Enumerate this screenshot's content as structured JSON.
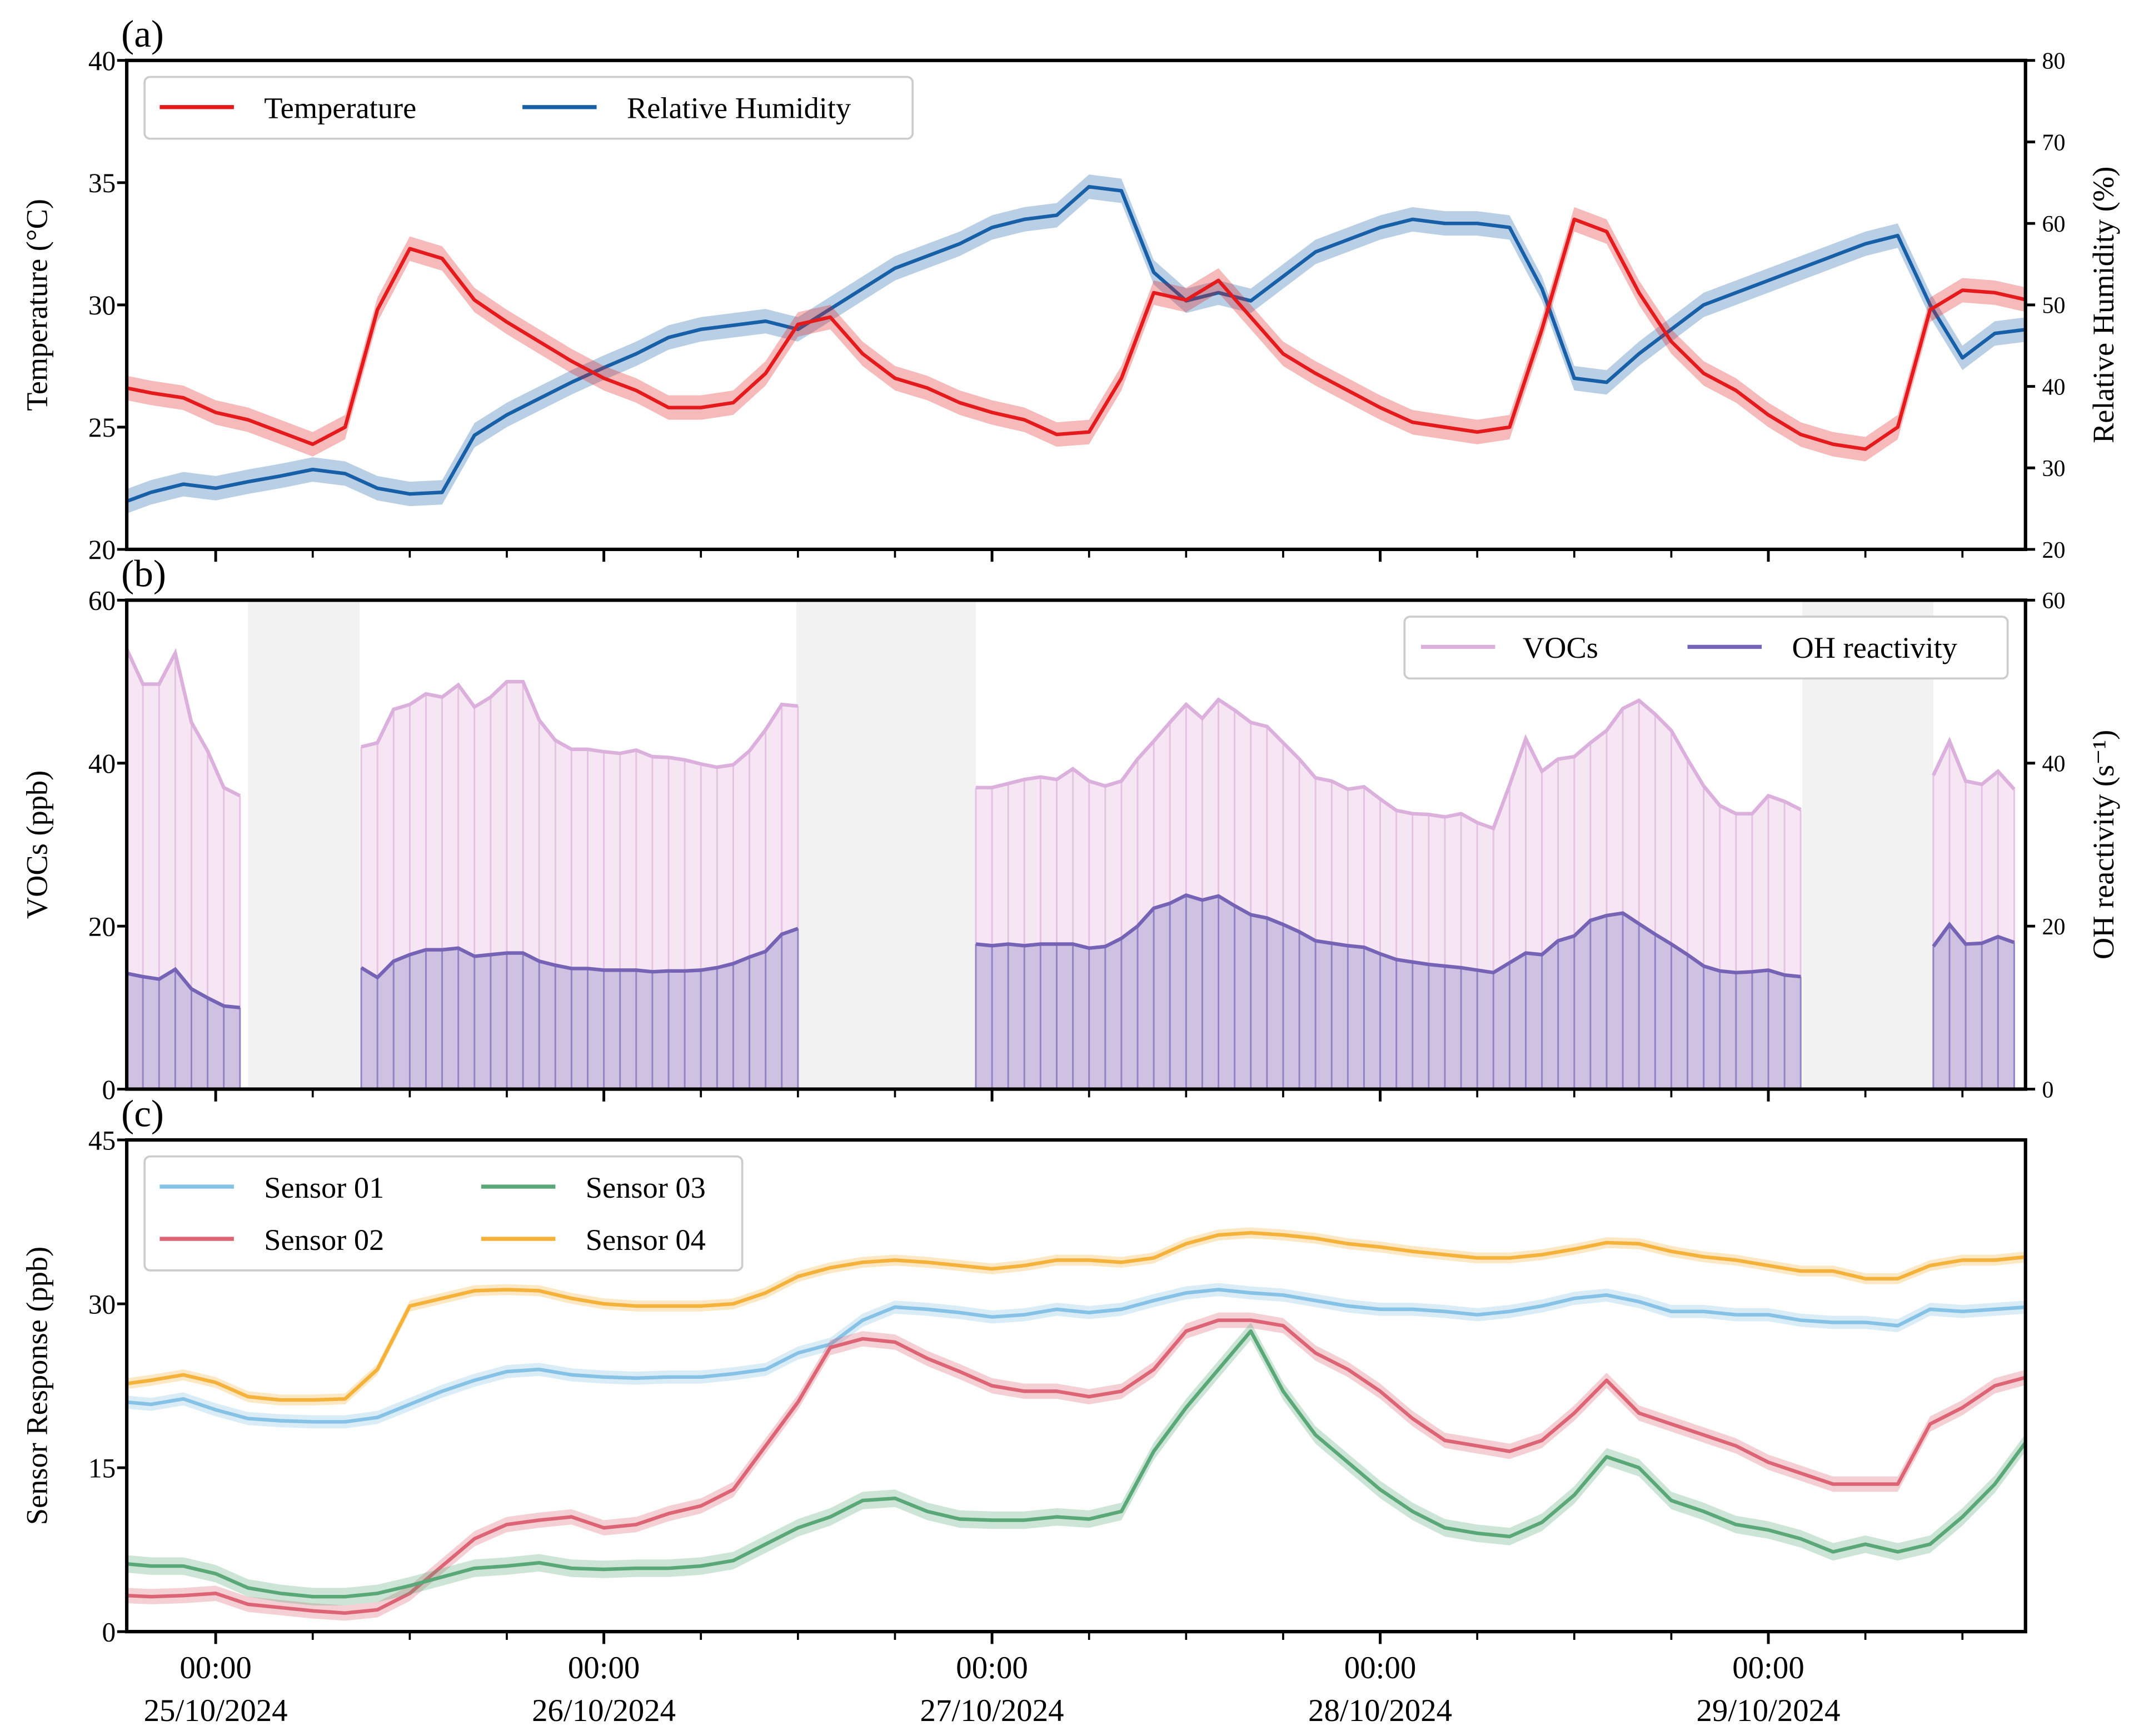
{
  "chart_data": [
    {
      "panel": "(a)",
      "type": "line",
      "ylabel": "Temperature (°C)",
      "ylabel2": "Relative Humidity (%)",
      "ylim": [
        20,
        40
      ],
      "ylim2": [
        20,
        80
      ],
      "yticks": [
        "20",
        "25",
        "30",
        "35",
        "40"
      ],
      "yticks2": [
        "20",
        "30",
        "40",
        "50",
        "60",
        "70",
        "80"
      ],
      "legend_position": "top-left",
      "series": [
        {
          "name": "Temperature",
          "axis": "left",
          "color": "#e41a1c",
          "band": 0.5,
          "values": [
            26.6,
            26.4,
            26.2,
            25.6,
            25.3,
            24.8,
            24.3,
            25.0,
            29.8,
            32.3,
            31.9,
            30.2,
            29.3,
            28.5,
            27.7,
            27.0,
            26.5,
            25.8,
            25.8,
            26.0,
            27.2,
            29.2,
            29.5,
            28.0,
            27.0,
            26.6,
            26.0,
            25.6,
            25.3,
            24.7,
            24.8,
            27.0,
            30.5,
            30.2,
            31.0,
            29.5,
            28.0,
            27.2,
            26.5,
            25.8,
            25.2,
            25.0,
            24.8,
            25.0,
            29.0,
            33.5,
            33.0,
            30.5,
            28.5,
            27.2,
            26.5,
            25.5,
            24.7,
            24.3,
            24.1,
            25.0,
            29.8,
            30.6,
            30.5,
            30.2
          ]
        },
        {
          "name": "Relative Humidity",
          "axis": "right",
          "color": "#1760a8",
          "band": 1.5,
          "values": [
            25.9,
            27,
            28,
            27.5,
            28.3,
            29,
            29.8,
            29.3,
            27.5,
            26.8,
            27,
            34,
            36.5,
            38.5,
            40.5,
            42.3,
            44,
            46,
            47,
            47.5,
            48,
            47,
            49.5,
            52,
            54.5,
            56,
            57.5,
            59.5,
            60.5,
            61,
            64.5,
            64,
            54,
            50.5,
            51.5,
            50.5,
            53.5,
            56.5,
            58,
            59.5,
            60.5,
            60,
            60,
            59.5,
            52,
            41,
            40.5,
            44,
            47,
            50,
            51.5,
            53,
            54.5,
            56,
            57.5,
            58.5,
            50,
            43.5,
            46.5,
            47
          ]
        }
      ]
    },
    {
      "panel": "(b)",
      "type": "area",
      "ylabel": "VOCs (ppb)",
      "ylabel2": "OH reactivity (s⁻¹)",
      "ylim": [
        0,
        60
      ],
      "ylim2": [
        0,
        60
      ],
      "yticks": [
        "0",
        "20",
        "40",
        "60"
      ],
      "yticks2": [
        "0",
        "20",
        "40",
        "60"
      ],
      "legend_position": "top-right",
      "gaps_hours": [
        [
          2.0,
          8.9
        ],
        [
          35.9,
          47.0
        ],
        [
          98.1,
          106.2
        ]
      ],
      "segments": [
        {
          "t_start": -5.5,
          "VOCs": [
            54,
            49.7,
            49.7,
            53.5,
            45,
            41.5,
            37,
            36
          ],
          "OH reactivity": [
            14.2,
            13.8,
            13.5,
            14.7,
            12.3,
            11.2,
            10.2,
            10.0
          ]
        },
        {
          "t_start": 9,
          "VOCs": [
            42.0,
            42.5,
            46.6,
            47.2,
            48.5,
            48.1,
            49.6,
            46.9,
            48.1,
            50,
            50,
            45.3,
            42.8,
            41.7,
            41.7,
            41.4,
            41.2,
            41.6,
            40.8,
            40.7,
            40.4,
            39.9,
            39.5,
            39.8,
            41.5,
            44.1,
            47.2,
            47.0
          ],
          "OH reactivity": [
            14.9,
            13.7,
            15.7,
            16.5,
            17.1,
            17.1,
            17.3,
            16.3,
            16.5,
            16.7,
            16.7,
            15.7,
            15.2,
            14.8,
            14.8,
            14.6,
            14.6,
            14.6,
            14.4,
            14.5,
            14.5,
            14.6,
            14.9,
            15.4,
            16.2,
            16.9,
            19,
            19.7
          ]
        },
        {
          "t_start": 47,
          "VOCs": [
            37.0,
            37.0,
            37.5,
            38,
            38.3,
            38,
            39.3,
            37.8,
            37.2,
            37.8,
            40.5,
            42.7,
            45,
            47.2,
            45.5,
            47.8,
            46.5,
            45,
            44.5,
            42.5,
            40.5,
            38.2,
            37.8,
            36.8,
            37.1,
            35.6,
            34.2,
            33.8,
            33.7,
            33.4,
            33.8,
            32.7,
            32.0,
            37.3,
            43.0,
            39.0,
            40.5,
            40.8,
            42.5,
            44,
            46.7,
            47.7,
            46,
            44,
            40.5,
            37.2,
            34.8,
            33.8,
            33.8,
            36,
            35.3,
            34.3
          ],
          "OH reactivity": [
            17.8,
            17.6,
            17.8,
            17.6,
            17.8,
            17.8,
            17.8,
            17.3,
            17.5,
            18.5,
            20,
            22.2,
            22.8,
            23.8,
            23.2,
            23.7,
            22.5,
            21.4,
            21,
            20.2,
            19.3,
            18.2,
            17.9,
            17.6,
            17.4,
            16.6,
            15.9,
            15.6,
            15.3,
            15.1,
            14.9,
            14.6,
            14.3,
            15.5,
            16.7,
            16.5,
            18.2,
            18.8,
            20.7,
            21.3,
            21.6,
            20.3,
            19,
            17.8,
            16.5,
            15.1,
            14.5,
            14.3,
            14.4,
            14.6,
            14.0,
            13.8
          ]
        },
        {
          "t_start": 106.2,
          "VOCs": [
            38.5,
            42.7,
            37.8,
            37.4,
            39,
            36.8
          ],
          "OH reactivity": [
            17.5,
            20.2,
            17.8,
            17.9,
            18.7,
            18
          ]
        }
      ],
      "series": [
        {
          "name": "VOCs",
          "color": "#dcb0dc",
          "fill": "#f6e6f3"
        },
        {
          "name": "OH reactivity",
          "color": "#7564b6",
          "fill": "#cfc1e1"
        }
      ]
    },
    {
      "panel": "(c)",
      "type": "line",
      "ylabel": "Sensor Response (ppb)",
      "ylim": [
        0,
        45
      ],
      "yticks": [
        "0",
        "15",
        "30",
        "45"
      ],
      "legend_position": "top-left",
      "series": [
        {
          "name": "Sensor 01",
          "color": "#86c2e6",
          "band": 0.6,
          "values": [
            21,
            20.8,
            21.3,
            20.3,
            19.5,
            19.3,
            19.2,
            19.2,
            19.6,
            20.8,
            22,
            23,
            23.8,
            24,
            23.5,
            23.3,
            23.2,
            23.3,
            23.3,
            23.6,
            24,
            25.5,
            26.3,
            28.5,
            29.7,
            29.5,
            29.2,
            28.8,
            29,
            29.5,
            29.2,
            29.5,
            30.3,
            31,
            31.3,
            31,
            30.8,
            30.3,
            29.8,
            29.5,
            29.5,
            29.3,
            29,
            29.3,
            29.8,
            30.5,
            30.8,
            30.2,
            29.3,
            29.3,
            29,
            29,
            28.5,
            28.3,
            28.3,
            28,
            29.5,
            29.3,
            29.5,
            29.7
          ]
        },
        {
          "name": "Sensor 02",
          "color": "#dc6475",
          "band": 0.7,
          "values": [
            3.3,
            3.2,
            3.3,
            3.5,
            2.5,
            2.2,
            1.9,
            1.7,
            2.0,
            3.5,
            6,
            8.5,
            9.8,
            10.2,
            10.5,
            9.5,
            9.8,
            10.8,
            11.5,
            13,
            17,
            21,
            26,
            26.8,
            26.5,
            25,
            23.8,
            22.5,
            22,
            22,
            21.5,
            22,
            24,
            27.5,
            28.5,
            28.5,
            28,
            25.5,
            24,
            22,
            19.5,
            17.5,
            17,
            16.5,
            17.5,
            20,
            23,
            20,
            19,
            18,
            17,
            15.5,
            14.5,
            13.5,
            13.5,
            13.5,
            19,
            20.5,
            22.5,
            23.3
          ]
        },
        {
          "name": "Sensor 03",
          "color": "#5aa877",
          "band": 0.8,
          "values": [
            6.2,
            6,
            6,
            5.3,
            4,
            3.5,
            3.2,
            3.2,
            3.5,
            4.2,
            5,
            5.8,
            6,
            6.3,
            5.8,
            5.7,
            5.8,
            5.8,
            6,
            6.5,
            8,
            9.5,
            10.5,
            12,
            12.2,
            11,
            10.3,
            10.2,
            10.2,
            10.5,
            10.3,
            11,
            16.5,
            20.5,
            24,
            27.5,
            22,
            18,
            15.5,
            13,
            11,
            9.5,
            9,
            8.7,
            10,
            12.5,
            16,
            15,
            12,
            11,
            9.8,
            9.3,
            8.5,
            7.3,
            8,
            7.3,
            8,
            10.5,
            13.5,
            17.5
          ]
        },
        {
          "name": "Sensor 04",
          "color": "#f4b23b",
          "band": 0.5,
          "values": [
            22.7,
            23,
            23.5,
            22.8,
            21.5,
            21.2,
            21.2,
            21.3,
            24,
            29.8,
            30.5,
            31.2,
            31.3,
            31.2,
            30.5,
            30,
            29.8,
            29.8,
            29.8,
            30,
            31,
            32.5,
            33.3,
            33.8,
            34,
            33.8,
            33.5,
            33.2,
            33.5,
            34,
            34,
            33.8,
            34.2,
            35.5,
            36.3,
            36.5,
            36.3,
            36,
            35.5,
            35.2,
            34.8,
            34.5,
            34.2,
            34.2,
            34.5,
            35,
            35.6,
            35.5,
            34.8,
            34.3,
            34,
            33.5,
            33,
            33,
            32.3,
            32.3,
            33.5,
            34,
            34,
            34.3
          ]
        }
      ]
    }
  ],
  "t_hours": [
    -5.5,
    -4,
    -2,
    0,
    2,
    4,
    6,
    8,
    10,
    12,
    14,
    16,
    18,
    20,
    22,
    24,
    26,
    28,
    30,
    32,
    34,
    36,
    38,
    40,
    42,
    44,
    46,
    48,
    50,
    52,
    54,
    56,
    58,
    60,
    62,
    64,
    66,
    68,
    70,
    72,
    74,
    76,
    78,
    80,
    82,
    84,
    86,
    88,
    90,
    92,
    94,
    96,
    98,
    100,
    102,
    104,
    106,
    108,
    110,
    112
  ],
  "x_range_hours": [
    -5.5,
    111.9
  ],
  "xticks": [
    {
      "hour": 0,
      "time": "00:00",
      "date": "25/10/2024"
    },
    {
      "hour": 24,
      "time": "00:00",
      "date": "26/10/2024"
    },
    {
      "hour": 48,
      "time": "00:00",
      "date": "27/10/2024"
    },
    {
      "hour": 72,
      "time": "00:00",
      "date": "28/10/2024"
    },
    {
      "hour": 96,
      "time": "00:00",
      "date": "29/10/2024"
    }
  ],
  "panel_labels": [
    "(a)",
    "(b)",
    "(c)"
  ]
}
